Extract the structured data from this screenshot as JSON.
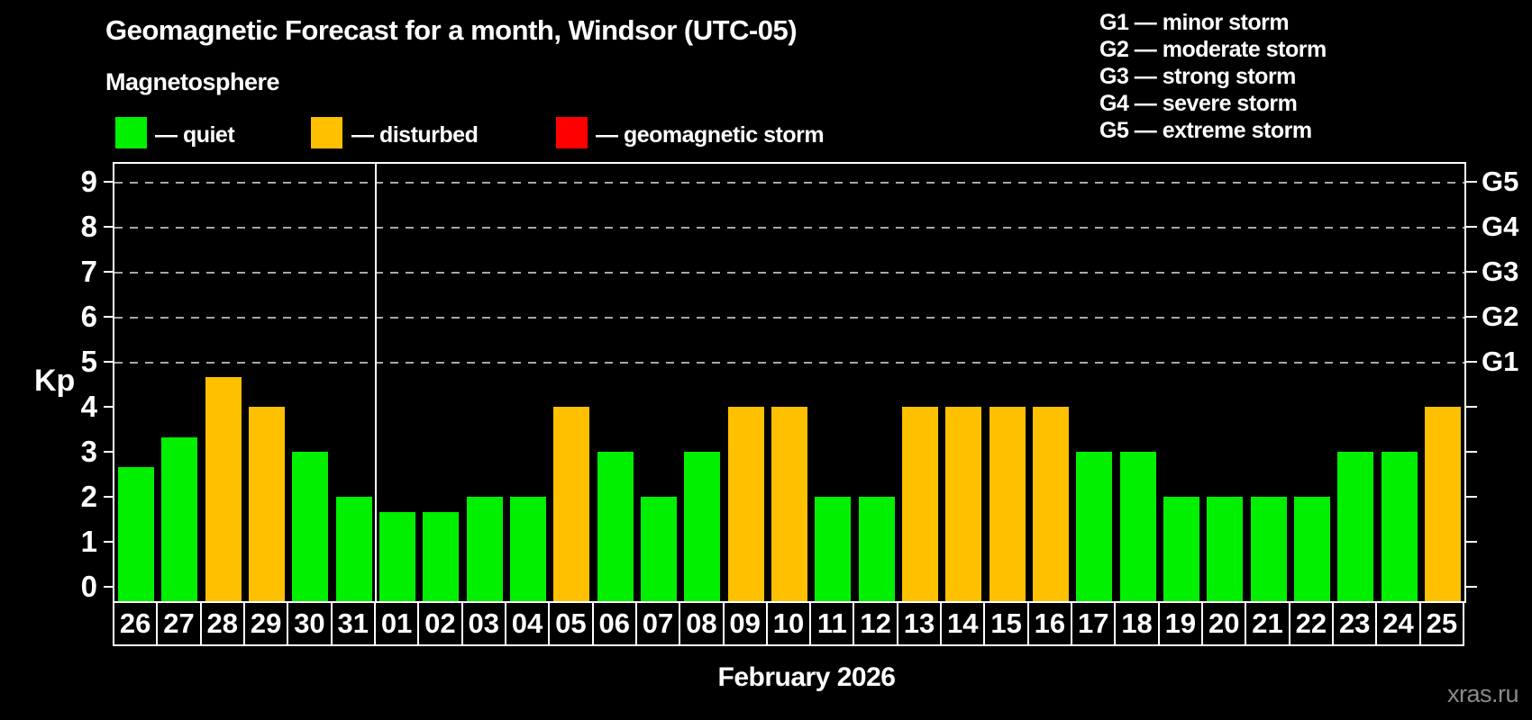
{
  "header": {
    "title": "Geomagnetic Forecast for a month, Windsor (UTC-05)",
    "subtitle": "Magnetosphere"
  },
  "legend": {
    "quiet_label": "— quiet",
    "disturbed_label": "— disturbed",
    "storm_label": "— geomagnetic storm"
  },
  "g_legend": [
    "G1 — minor storm",
    "G2 — moderate storm",
    "G3 — strong storm",
    "G4 — severe storm",
    "G5 — extreme storm"
  ],
  "axes": {
    "y_label": "Kp",
    "y_tick_labels": [
      "0",
      "1",
      "2",
      "3",
      "4",
      "5",
      "6",
      "7",
      "8",
      "9"
    ],
    "x_label": "February 2026"
  },
  "watermark": "xras.ru",
  "palette": {
    "quiet": "#00F000",
    "disturbed": "#FFC000",
    "storm": "#FF0000",
    "grid": "#A8A8A8",
    "axis": "#FFFFFF",
    "watermark": "#8A8A8A",
    "background": "#000000"
  },
  "chart_data": {
    "type": "bar",
    "title": "Geomagnetic Forecast for a month, Windsor (UTC-05)",
    "xlabel": "February 2026",
    "ylabel": "Kp",
    "ylim": [
      0,
      9
    ],
    "grid": "dashed horizontal at Kp 5-9",
    "gridlines_at": [
      5,
      6,
      7,
      8,
      9
    ],
    "month_boundary_after_index": 5,
    "categories": [
      "26",
      "27",
      "28",
      "29",
      "30",
      "31",
      "01",
      "02",
      "03",
      "04",
      "05",
      "06",
      "07",
      "08",
      "09",
      "10",
      "11",
      "12",
      "13",
      "14",
      "15",
      "16",
      "17",
      "18",
      "19",
      "20",
      "21",
      "22",
      "23",
      "24",
      "25"
    ],
    "values": [
      2.67,
      3.33,
      4.67,
      4,
      3,
      2,
      1.67,
      1.67,
      2,
      2,
      4,
      3,
      2,
      3,
      4,
      4,
      2,
      2,
      4,
      4,
      4,
      4,
      3,
      3,
      2,
      2,
      2,
      2,
      3,
      3,
      4
    ],
    "statuses": [
      "quiet",
      "quiet",
      "disturbed",
      "disturbed",
      "quiet",
      "quiet",
      "quiet",
      "quiet",
      "quiet",
      "quiet",
      "disturbed",
      "quiet",
      "quiet",
      "quiet",
      "disturbed",
      "disturbed",
      "quiet",
      "quiet",
      "disturbed",
      "disturbed",
      "disturbed",
      "disturbed",
      "quiet",
      "quiet",
      "quiet",
      "quiet",
      "quiet",
      "quiet",
      "quiet",
      "quiet",
      "disturbed"
    ],
    "right_axis_labels": [
      {
        "label": "G1",
        "kp": 5
      },
      {
        "label": "G2",
        "kp": 6
      },
      {
        "label": "G3",
        "kp": 7
      },
      {
        "label": "G4",
        "kp": 8
      },
      {
        "label": "G5",
        "kp": 9
      }
    ]
  }
}
